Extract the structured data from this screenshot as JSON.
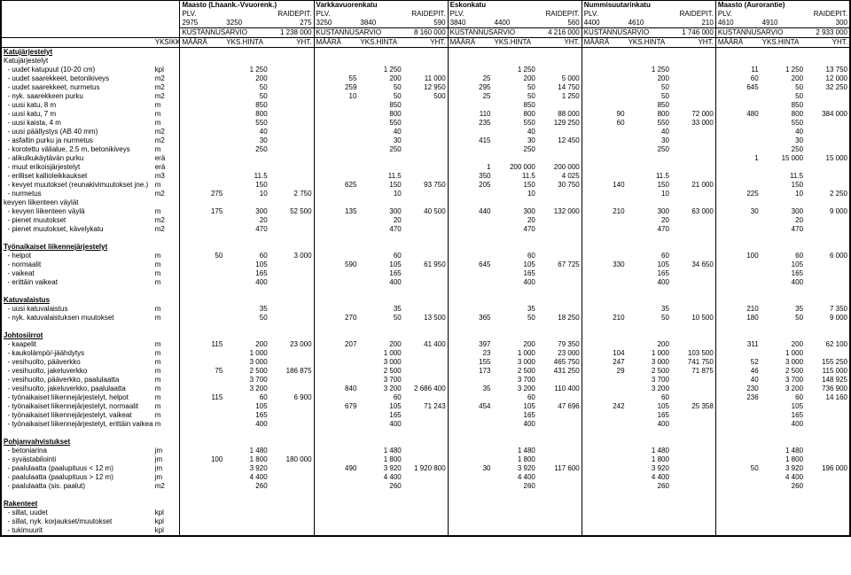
{
  "header": {
    "sites": [
      {
        "name": "Maasto (Lhaank.-Vvuorenk.)",
        "plv": "2975",
        "raidep": "3250",
        "plvH": "275",
        "kust": "1 238 000"
      },
      {
        "name": "Varkkavuorenkatu",
        "plv": "3250",
        "raidep": "3840",
        "plvH": "590",
        "kust": "8 160 000"
      },
      {
        "name": "Eskonkatu",
        "plv": "3840",
        "raidep": "4400",
        "plvH": "560",
        "kust": "4 216 000"
      },
      {
        "name": "Nummisuutarinkatu",
        "plv": "4400",
        "raidep": "4610",
        "plvH": "210",
        "kust": "1 746 000"
      },
      {
        "name": "Maasto (Aurorantie)",
        "plv": "4610",
        "raidep": "4910",
        "plvH": "300",
        "kust": "2 933 000"
      }
    ],
    "labels": {
      "plv": "PLV.",
      "raidep": "RAIDEPIT.",
      "kust": "KUSTANNUSARVIO",
      "yksikko": "YKSIKKÖ",
      "maara": "MÄÄRÄ",
      "yksHinta": "YKS.HINTA",
      "yht": "YHT."
    }
  },
  "sections": [
    {
      "title": "Katujärjestelyt",
      "rows": [
        {
          "indent": 0,
          "label": "Katujärjestelyt",
          "u": "",
          "v": [
            "",
            "",
            "",
            "",
            "",
            "",
            "",
            "",
            "",
            "",
            "",
            "",
            "",
            "",
            ""
          ]
        },
        {
          "indent": 1,
          "label": "- uudet katupuut (10-20 cm)",
          "u": "kpl",
          "v": [
            "",
            "1 250",
            "",
            "",
            "1 250",
            "",
            "",
            "1 250",
            "",
            "",
            "1 250",
            "",
            "11",
            "1 250",
            "13 750"
          ]
        },
        {
          "indent": 1,
          "label": "- uudet saarekkeet, betonikiveys",
          "u": "m2",
          "v": [
            "",
            "200",
            "",
            "55",
            "200",
            "11 000",
            "25",
            "200",
            "5 000",
            "",
            "200",
            "",
            "60",
            "200",
            "12 000"
          ]
        },
        {
          "indent": 1,
          "label": "- uudet saarekkeet, nurmetus",
          "u": "m2",
          "v": [
            "",
            "50",
            "",
            "259",
            "50",
            "12 950",
            "295",
            "50",
            "14 750",
            "",
            "50",
            "",
            "645",
            "50",
            "32 250"
          ]
        },
        {
          "indent": 1,
          "label": "- nyk. saarekkeen purku",
          "u": "m2",
          "v": [
            "",
            "50",
            "",
            "10",
            "50",
            "500",
            "25",
            "50",
            "1 250",
            "",
            "50",
            "",
            "",
            "50",
            ""
          ]
        },
        {
          "indent": 1,
          "label": "- uusi katu, 8 m",
          "u": "m",
          "v": [
            "",
            "850",
            "",
            "",
            "850",
            "",
            "",
            "850",
            "",
            "",
            "850",
            "",
            "",
            "850",
            ""
          ]
        },
        {
          "indent": 1,
          "label": "- uusi katu, 7 m",
          "u": "m",
          "v": [
            "",
            "800",
            "",
            "",
            "800",
            "",
            "110",
            "800",
            "88 000",
            "90",
            "800",
            "72 000",
            "480",
            "800",
            "384 000"
          ]
        },
        {
          "indent": 1,
          "label": "- uusi kaista, 4 m",
          "u": "m",
          "v": [
            "",
            "550",
            "",
            "",
            "550",
            "",
            "235",
            "550",
            "129 250",
            "60",
            "550",
            "33 000",
            "",
            "550",
            ""
          ]
        },
        {
          "indent": 1,
          "label": "- uusi päällystys (AB 40 mm)",
          "u": "m2",
          "v": [
            "",
            "40",
            "",
            "",
            "40",
            "",
            "",
            "40",
            "",
            "",
            "40",
            "",
            "",
            "40",
            ""
          ]
        },
        {
          "indent": 1,
          "label": "- asfaltin purku ja nurmetus",
          "u": "m2",
          "v": [
            "",
            "30",
            "",
            "",
            "30",
            "",
            "415",
            "30",
            "12 450",
            "",
            "30",
            "",
            "",
            "30",
            ""
          ]
        },
        {
          "indent": 1,
          "label": "- korotettu välialue, 2.5 m, betonikiveys",
          "u": "m",
          "v": [
            "",
            "250",
            "",
            "",
            "250",
            "",
            "",
            "250",
            "",
            "",
            "250",
            "",
            "",
            "250",
            ""
          ]
        },
        {
          "indent": 1,
          "label": "- alikulkukäytävän purku",
          "u": "erä",
          "v": [
            "",
            "",
            "",
            "",
            "",
            "",
            "",
            "",
            "",
            "",
            "",
            "",
            "1",
            "15 000",
            "15 000"
          ]
        },
        {
          "indent": 1,
          "label": "- muut erikoisjärjestelyt",
          "u": "erä",
          "v": [
            "",
            "",
            "",
            "",
            "",
            "",
            "1",
            "200 000",
            "200 000",
            "",
            "",
            "",
            "",
            "",
            ""
          ]
        },
        {
          "indent": 1,
          "label": "- erilliset kallioleikkaukset",
          "u": "m3",
          "v": [
            "",
            "11.5",
            "",
            "",
            "11.5",
            "",
            "350",
            "11.5",
            "4 025",
            "",
            "11.5",
            "",
            "",
            "11.5",
            ""
          ]
        },
        {
          "indent": 1,
          "label": "- kevyet muutokset (reunakivimuutokset jne.)",
          "u": "m",
          "v": [
            "",
            "150",
            "",
            "625",
            "150",
            "93 750",
            "205",
            "150",
            "30 750",
            "140",
            "150",
            "21 000",
            "",
            "150",
            ""
          ]
        },
        {
          "indent": 1,
          "label": "- nurmetus",
          "u": "m2",
          "v": [
            "275",
            "10",
            "2 750",
            "",
            "10",
            "",
            "",
            "10",
            "",
            "",
            "10",
            "",
            "225",
            "10",
            "2 250"
          ]
        },
        {
          "indent": 0,
          "label": "kevyen liikenteen väylät",
          "u": "",
          "v": [
            "",
            "",
            "",
            "",
            "",
            "",
            "",
            "",
            "",
            "",
            "",
            "",
            "",
            "",
            ""
          ]
        },
        {
          "indent": 1,
          "label": "- kevyen liikenteen väylä",
          "u": "m",
          "v": [
            "175",
            "300",
            "52 500",
            "135",
            "300",
            "40 500",
            "440",
            "300",
            "132 000",
            "210",
            "300",
            "63 000",
            "30",
            "300",
            "9 000"
          ]
        },
        {
          "indent": 1,
          "label": "- pienet muutokset",
          "u": "m2",
          "v": [
            "",
            "20",
            "",
            "",
            "20",
            "",
            "",
            "20",
            "",
            "",
            "20",
            "",
            "",
            "20",
            ""
          ]
        },
        {
          "indent": 1,
          "label": "- pienet muutokset, kävelykatu",
          "u": "m2",
          "v": [
            "",
            "470",
            "",
            "",
            "470",
            "",
            "",
            "470",
            "",
            "",
            "470",
            "",
            "",
            "470",
            ""
          ]
        }
      ]
    },
    {
      "title": "Työnaikaiset liikennejärjestelyt",
      "rows": [
        {
          "indent": 1,
          "label": "- helpot",
          "u": "m",
          "v": [
            "50",
            "60",
            "3 000",
            "",
            "60",
            "",
            "",
            "60",
            "",
            "",
            "60",
            "",
            "100",
            "60",
            "6 000"
          ]
        },
        {
          "indent": 1,
          "label": "- normaalit",
          "u": "m",
          "v": [
            "",
            "105",
            "",
            "590",
            "105",
            "61 950",
            "645",
            "105",
            "67 725",
            "330",
            "105",
            "34 650",
            "",
            "105",
            ""
          ]
        },
        {
          "indent": 1,
          "label": "- vaikeat",
          "u": "m",
          "v": [
            "",
            "165",
            "",
            "",
            "165",
            "",
            "",
            "165",
            "",
            "",
            "165",
            "",
            "",
            "165",
            ""
          ]
        },
        {
          "indent": 1,
          "label": "- erittäin vaikeat",
          "u": "m",
          "v": [
            "",
            "400",
            "",
            "",
            "400",
            "",
            "",
            "400",
            "",
            "",
            "400",
            "",
            "",
            "400",
            ""
          ]
        }
      ]
    },
    {
      "title": "Katuvalaistus",
      "rows": [
        {
          "indent": 1,
          "label": "- uusi katuvalaistus",
          "u": "m",
          "v": [
            "",
            "35",
            "",
            "",
            "35",
            "",
            "",
            "35",
            "",
            "",
            "35",
            "",
            "210",
            "35",
            "7 350"
          ]
        },
        {
          "indent": 1,
          "label": "- nyk. katuvalaistuksen muutokset",
          "u": "m",
          "v": [
            "",
            "50",
            "",
            "270",
            "50",
            "13 500",
            "365",
            "50",
            "18 250",
            "210",
            "50",
            "10 500",
            "180",
            "50",
            "9 000"
          ]
        }
      ]
    },
    {
      "title": "Johtosiirrot",
      "rows": [
        {
          "indent": 1,
          "label": "- kaapelit",
          "u": "m",
          "v": [
            "115",
            "200",
            "23 000",
            "207",
            "200",
            "41 400",
            "397",
            "200",
            "79 350",
            "",
            "200",
            "",
            "311",
            "200",
            "62 100"
          ]
        },
        {
          "indent": 1,
          "label": "- kaukolämpö/-jäähdytys",
          "u": "m",
          "v": [
            "",
            "1 000",
            "",
            "",
            "1 000",
            "",
            "23",
            "1 000",
            "23 000",
            "104",
            "1 000",
            "103 500",
            "",
            "1 000",
            ""
          ]
        },
        {
          "indent": 1,
          "label": "- vesihuolto, pääverkko",
          "u": "m",
          "v": [
            "",
            "3 000",
            "",
            "",
            "3 000",
            "",
            "155",
            "3 000",
            "465 750",
            "247",
            "3 000",
            "741 750",
            "52",
            "3 000",
            "155 250"
          ]
        },
        {
          "indent": 1,
          "label": "- vesihuolto, jakeluverkko",
          "u": "m",
          "v": [
            "75",
            "2 500",
            "186 875",
            "",
            "2 500",
            "",
            "173",
            "2 500",
            "431 250",
            "29",
            "2 500",
            "71 875",
            "46",
            "2 500",
            "115 000"
          ]
        },
        {
          "indent": 1,
          "label": "- vesihuolto, pääverkko, paalulaatta",
          "u": "m",
          "v": [
            "",
            "3 700",
            "",
            "",
            "3 700",
            "",
            "",
            "3 700",
            "",
            "",
            "3 700",
            "",
            "40",
            "3 700",
            "148 925"
          ]
        },
        {
          "indent": 1,
          "label": "- vesihuolto, jakeluverkko, paalulaatta",
          "u": "m",
          "v": [
            "",
            "3 200",
            "",
            "840",
            "3 200",
            "2 686 400",
            "35",
            "3 200",
            "110 400",
            "",
            "3 200",
            "",
            "230",
            "3 200",
            "736 900"
          ]
        },
        {
          "indent": 1,
          "label": "- työnaikaiset liikennejärjestelyt, helpot",
          "u": "m",
          "v": [
            "115",
            "60",
            "6 900",
            "",
            "60",
            "",
            "",
            "60",
            "",
            "",
            "60",
            "",
            "236",
            "60",
            "14 160"
          ]
        },
        {
          "indent": 1,
          "label": "- työnaikaiset liikennejärjestelyt, normaalit",
          "u": "m",
          "v": [
            "",
            "105",
            "",
            "679",
            "105",
            "71 243",
            "454",
            "105",
            "47 696",
            "242",
            "105",
            "25 358",
            "",
            "105",
            ""
          ]
        },
        {
          "indent": 1,
          "label": "- työnaikaiset liikennejärjestelyt, vaikeat",
          "u": "m",
          "v": [
            "",
            "165",
            "",
            "",
            "165",
            "",
            "",
            "165",
            "",
            "",
            "165",
            "",
            "",
            "165",
            ""
          ]
        },
        {
          "indent": 1,
          "label": "- työnaikaiset liikennejärjestelyt, erittäin vaikeat",
          "u": "m",
          "v": [
            "",
            "400",
            "",
            "",
            "400",
            "",
            "",
            "400",
            "",
            "",
            "400",
            "",
            "",
            "400",
            ""
          ]
        }
      ]
    },
    {
      "title": "Pohjanvahvistukset",
      "rows": [
        {
          "indent": 1,
          "label": "- betoniarina",
          "u": "jm",
          "v": [
            "",
            "1 480",
            "",
            "",
            "1 480",
            "",
            "",
            "1 480",
            "",
            "",
            "1 480",
            "",
            "",
            "1 480",
            ""
          ]
        },
        {
          "indent": 1,
          "label": "- syvästabilointi",
          "u": "jm",
          "v": [
            "100",
            "1 800",
            "180 000",
            "",
            "1 800",
            "",
            "",
            "1 800",
            "",
            "",
            "1 800",
            "",
            "",
            "1 800",
            ""
          ]
        },
        {
          "indent": 1,
          "label": "- paalulaatta (paalupituus < 12 m)",
          "u": "jm",
          "v": [
            "",
            "3 920",
            "",
            "490",
            "3 920",
            "1 920 800",
            "30",
            "3 920",
            "117 600",
            "",
            "3 920",
            "",
            "50",
            "3 920",
            "196 000"
          ]
        },
        {
          "indent": 1,
          "label": "- paalulaatta (paalupituus > 12 m)",
          "u": "jm",
          "v": [
            "",
            "4 400",
            "",
            "",
            "4 400",
            "",
            "",
            "4 400",
            "",
            "",
            "4 400",
            "",
            "",
            "4 400",
            ""
          ]
        },
        {
          "indent": 1,
          "label": "- paalulaatta (sis. paalut)",
          "u": "m2",
          "v": [
            "",
            "260",
            "",
            "",
            "260",
            "",
            "",
            "260",
            "",
            "",
            "260",
            "",
            "",
            "260",
            ""
          ]
        }
      ]
    },
    {
      "title": "Rakenteet",
      "rows": [
        {
          "indent": 1,
          "label": "- sillat, uudet",
          "u": "kpl",
          "v": [
            "",
            "",
            "",
            "",
            "",
            "",
            "",
            "",
            "",
            "",
            "",
            "",
            "",
            "",
            ""
          ]
        },
        {
          "indent": 1,
          "label": "- sillat, nyk. korjaukset/muutokset",
          "u": "kpl",
          "v": [
            "",
            "",
            "",
            "",
            "",
            "",
            "",
            "",
            "",
            "",
            "",
            "",
            "",
            "",
            ""
          ]
        },
        {
          "indent": 1,
          "label": "- tukimuurit",
          "u": "kpl",
          "v": [
            "",
            "",
            "",
            "",
            "",
            "",
            "",
            "",
            "",
            "",
            "",
            "",
            "",
            "",
            ""
          ]
        }
      ]
    }
  ]
}
